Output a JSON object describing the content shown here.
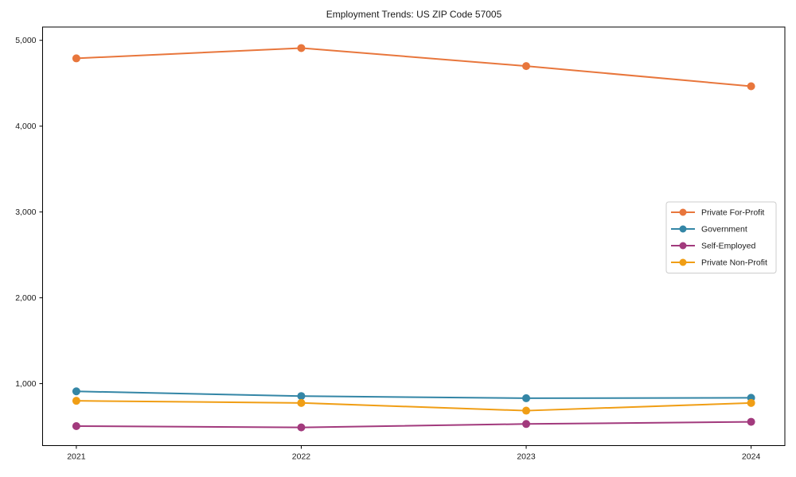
{
  "window": {
    "background": "#ffffff"
  },
  "chart_data": {
    "type": "line",
    "title": "Employment Trends: US ZIP Code 57005",
    "xlabel": "",
    "ylabel": "",
    "x": [
      2021,
      2022,
      2023,
      2024
    ],
    "x_tick_labels": [
      "2021",
      "2022",
      "2023",
      "2024"
    ],
    "y_ticks": [
      1000,
      2000,
      3000,
      4000,
      5000
    ],
    "y_tick_labels": [
      "1,000",
      "2,000",
      "3,000",
      "4,000",
      "5,000"
    ],
    "xlim": [
      2020.85,
      2024.15
    ],
    "ylim": [
      278,
      5155
    ],
    "grid": false,
    "legend_position": "center right",
    "marker": "circle",
    "axis_color": "#000000",
    "tick_text_color": "#1a1a1a",
    "legend_border_color": "#cccccc",
    "series": [
      {
        "name": "Private For-Profit",
        "color": "#e8763c",
        "values": [
          4790,
          4910,
          4700,
          4465
        ]
      },
      {
        "name": "Government",
        "color": "#3486a6",
        "values": [
          910,
          855,
          830,
          835
        ]
      },
      {
        "name": "Self-Employed",
        "color": "#a23a7d",
        "values": [
          505,
          490,
          530,
          555
        ]
      },
      {
        "name": "Private Non-Profit",
        "color": "#f09e15",
        "values": [
          800,
          775,
          685,
          775
        ]
      }
    ]
  }
}
